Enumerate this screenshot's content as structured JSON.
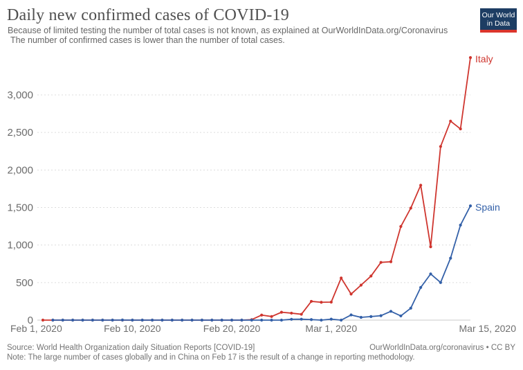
{
  "header": {
    "title": "Daily new confirmed cases of COVID-19",
    "subtitle_line1": "Because of limited testing the number of total cases is not known, as explained at OurWorldInData.org/Coronavirus",
    "subtitle_line2": "The number of confirmed cases is lower than the number of total cases.",
    "logo_line1": "Our World",
    "logo_line2": "in Data",
    "logo_bg_color": "#1d3d63",
    "logo_stripe_color": "#dc352c"
  },
  "footer": {
    "source": "Source: World Health Organization daily Situation Reports [COVID-19]",
    "license": "OurWorldInData.org/coronavirus • CC BY",
    "note": "Note: The large number of cases globally and in China on Feb 17 is the result of a change in reporting methodology."
  },
  "chart_data": {
    "type": "line",
    "title": "Daily new confirmed cases of COVID-19",
    "xlabel": "",
    "ylabel": "",
    "ylim": [
      0,
      3000
    ],
    "grid": "horizontal-dashed",
    "legend_position": "end-of-line-labels",
    "dates": [
      "Feb 1",
      "Feb 2",
      "Feb 3",
      "Feb 4",
      "Feb 5",
      "Feb 6",
      "Feb 7",
      "Feb 8",
      "Feb 9",
      "Feb 10",
      "Feb 11",
      "Feb 12",
      "Feb 13",
      "Feb 14",
      "Feb 15",
      "Feb 16",
      "Feb 17",
      "Feb 18",
      "Feb 19",
      "Feb 20",
      "Feb 21",
      "Feb 22",
      "Feb 23",
      "Feb 24",
      "Feb 25",
      "Feb 26",
      "Feb 27",
      "Feb 28",
      "Feb 29",
      "Mar 1",
      "Mar 2",
      "Mar 3",
      "Mar 4",
      "Mar 5",
      "Mar 6",
      "Mar 7",
      "Mar 8",
      "Mar 9",
      "Mar 10",
      "Mar 11",
      "Mar 12",
      "Mar 13",
      "Mar 14",
      "Mar 15"
    ],
    "x_ticks": [
      {
        "day": 0,
        "label": "Feb 1, 2020"
      },
      {
        "day": 9,
        "label": "Feb 10, 2020"
      },
      {
        "day": 19,
        "label": "Feb 20, 2020"
      },
      {
        "day": 29,
        "label": "Mar 1, 2020"
      },
      {
        "day": 43,
        "label": "Mar 15, 2020"
      }
    ],
    "y_ticks": [
      {
        "value": 0,
        "label": "0"
      },
      {
        "value": 500,
        "label": "500"
      },
      {
        "value": 1000,
        "label": "1,000"
      },
      {
        "value": 1500,
        "label": "1,500"
      },
      {
        "value": 2000,
        "label": "2,000"
      },
      {
        "value": 2500,
        "label": "2,500"
      },
      {
        "value": 3000,
        "label": "3,000"
      }
    ],
    "series": [
      {
        "name": "Italy",
        "color": "#cf352e",
        "values": [
          0,
          0,
          0,
          0,
          0,
          0,
          0,
          0,
          0,
          0,
          0,
          0,
          0,
          0,
          0,
          0,
          0,
          0,
          0,
          0,
          0,
          6,
          67,
          48,
          105,
          93,
          78,
          250,
          238,
          240,
          561,
          347,
          466,
          587,
          769,
          778,
          1247,
          1492,
          1797,
          977,
          2313,
          2651,
          2547,
          3497
        ]
      },
      {
        "name": "Spain",
        "color": "#3360a8",
        "values": [
          null,
          0,
          0,
          0,
          0,
          0,
          0,
          0,
          1,
          0,
          0,
          0,
          0,
          0,
          0,
          0,
          0,
          0,
          0,
          0,
          0,
          0,
          0,
          0,
          0,
          11,
          12,
          7,
          0,
          13,
          0,
          69,
          37,
          47,
          59,
          117,
          56,
          159,
          435,
          615,
          501,
          825,
          1266,
          1522
        ]
      }
    ]
  }
}
